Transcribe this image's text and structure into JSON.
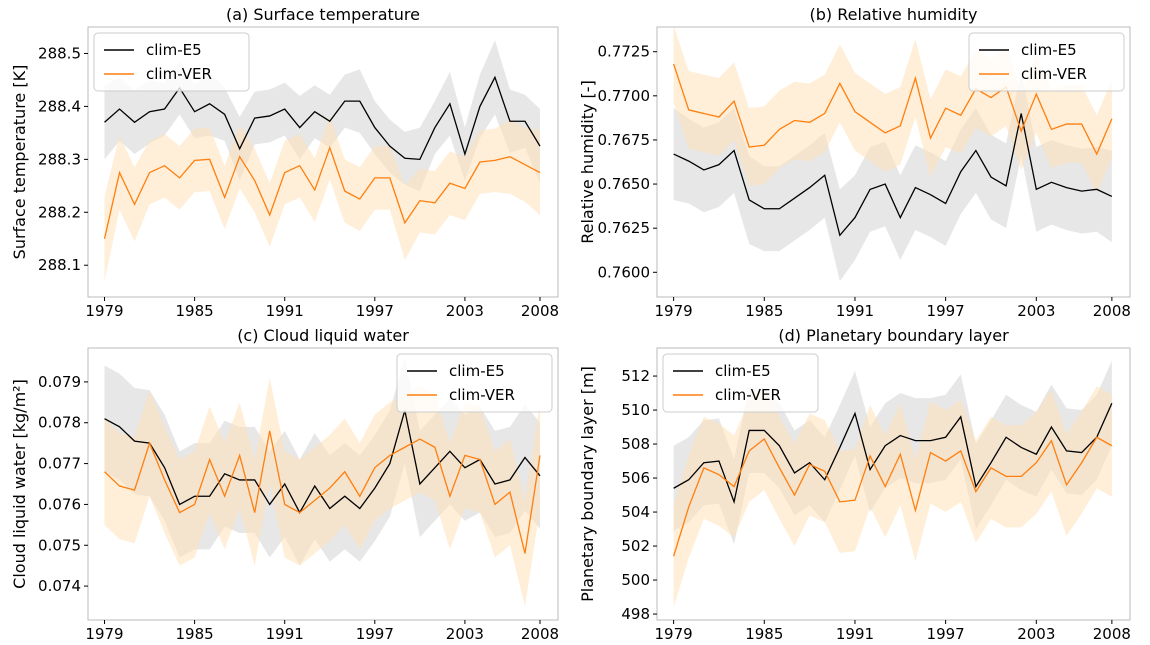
{
  "chart_data": [
    {
      "type": "line",
      "title": "(a) Surface temperature",
      "ylabel": "Surface temperature [K]",
      "x": [
        1979,
        1980,
        1981,
        1982,
        1983,
        1984,
        1985,
        1986,
        1987,
        1988,
        1989,
        1990,
        1991,
        1992,
        1993,
        1994,
        1995,
        1996,
        1997,
        1998,
        1999,
        2000,
        2001,
        2002,
        2003,
        2004,
        2005,
        2006,
        2007,
        2008
      ],
      "xlim": [
        1977.9,
        2009.2
      ],
      "xticks": [
        1979,
        1985,
        1991,
        1997,
        2003,
        2008
      ],
      "ylim": [
        288.04,
        288.55
      ],
      "yticks": [
        288.1,
        288.2,
        288.3,
        288.4,
        288.5
      ],
      "legend": "upper left",
      "series": [
        {
          "name": "clim-E5",
          "color": "#000000",
          "band_color": "#d3d3d3",
          "values": [
            288.37,
            288.395,
            288.37,
            288.39,
            288.395,
            288.435,
            288.39,
            288.405,
            288.385,
            288.32,
            288.378,
            288.382,
            288.395,
            288.36,
            288.39,
            288.372,
            288.41,
            288.41,
            288.36,
            288.325,
            288.302,
            288.3,
            288.36,
            288.405,
            288.31,
            288.4,
            288.455,
            288.372,
            288.372,
            288.325
          ],
          "errors": [
            0.07,
            0.06,
            0.06,
            0.06,
            0.05,
            0.05,
            0.05,
            0.06,
            0.05,
            0.06,
            0.05,
            0.05,
            0.05,
            0.06,
            0.05,
            0.05,
            0.05,
            0.06,
            0.05,
            0.05,
            0.05,
            0.06,
            0.05,
            0.06,
            0.05,
            0.06,
            0.07,
            0.06,
            0.05,
            0.07
          ]
        },
        {
          "name": "clim-VER",
          "color": "#ff7f0e",
          "band_color": "#ffe0b8",
          "values": [
            288.15,
            288.275,
            288.215,
            288.275,
            288.288,
            288.265,
            288.298,
            288.3,
            288.228,
            288.305,
            288.26,
            288.195,
            288.275,
            288.288,
            288.242,
            288.322,
            288.24,
            288.225,
            288.265,
            288.265,
            288.18,
            288.222,
            288.218,
            288.255,
            288.245,
            288.295,
            288.298,
            288.305,
            288.29,
            288.275
          ],
          "errors": [
            0.08,
            0.07,
            0.07,
            0.06,
            0.06,
            0.06,
            0.06,
            0.06,
            0.06,
            0.06,
            0.06,
            0.06,
            0.06,
            0.06,
            0.06,
            0.06,
            0.06,
            0.06,
            0.06,
            0.06,
            0.07,
            0.06,
            0.06,
            0.06,
            0.06,
            0.06,
            0.06,
            0.07,
            0.07,
            0.08
          ]
        }
      ]
    },
    {
      "type": "line",
      "title": "(b) Relative humidity",
      "ylabel": "Relative humidity [-]",
      "x": [
        1979,
        1980,
        1981,
        1982,
        1983,
        1984,
        1985,
        1986,
        1987,
        1988,
        1989,
        1990,
        1991,
        1992,
        1993,
        1994,
        1995,
        1996,
        1997,
        1998,
        1999,
        2000,
        2001,
        2002,
        2003,
        2004,
        2005,
        2006,
        2007,
        2008
      ],
      "xlim": [
        1977.9,
        2009.2
      ],
      "xticks": [
        1979,
        1985,
        1991,
        1997,
        2003,
        2008
      ],
      "ylim": [
        0.7586,
        0.7739
      ],
      "yticks": [
        {
          "value": 0.76,
          "label": "0.7600"
        },
        {
          "value": 0.7625,
          "label": "0.7625"
        },
        {
          "value": 0.765,
          "label": "0.7650"
        },
        {
          "value": 0.7675,
          "label": "0.7675"
        },
        {
          "value": 0.77,
          "label": "0.7700"
        },
        {
          "value": 0.7725,
          "label": "0.7725"
        }
      ],
      "legend": "upper right",
      "series": [
        {
          "name": "clim-E5",
          "color": "#000000",
          "band_color": "#d3d3d3",
          "values": [
            0.7667,
            0.7663,
            0.7658,
            0.7661,
            0.7669,
            0.7641,
            0.7636,
            0.7636,
            0.7642,
            0.7648,
            0.7655,
            0.7621,
            0.7631,
            0.7647,
            0.765,
            0.7631,
            0.7648,
            0.7644,
            0.7639,
            0.7657,
            0.7669,
            0.7654,
            0.7649,
            0.769,
            0.7647,
            0.7651,
            0.7648,
            0.7646,
            0.7647,
            0.7643
          ],
          "errors": [
            0.0026,
            0.0024,
            0.0024,
            0.0024,
            0.0024,
            0.0025,
            0.0024,
            0.0024,
            0.0024,
            0.0024,
            0.0024,
            0.0026,
            0.0024,
            0.0024,
            0.0024,
            0.0024,
            0.0024,
            0.0024,
            0.0024,
            0.0024,
            0.0024,
            0.0024,
            0.0024,
            0.0024,
            0.0024,
            0.0024,
            0.0024,
            0.0024,
            0.0024,
            0.0026
          ]
        },
        {
          "name": "clim-VER",
          "color": "#ff7f0e",
          "band_color": "#ffe0b8",
          "values": [
            0.7718,
            0.7692,
            0.769,
            0.7688,
            0.7697,
            0.7671,
            0.7672,
            0.7681,
            0.7686,
            0.7685,
            0.769,
            0.7707,
            0.7691,
            0.7685,
            0.7679,
            0.7683,
            0.771,
            0.7676,
            0.7693,
            0.7689,
            0.7704,
            0.7699,
            0.7705,
            0.768,
            0.7701,
            0.7681,
            0.7684,
            0.7684,
            0.7667,
            0.7687
          ],
          "errors": [
            0.0022,
            0.0022,
            0.0022,
            0.0022,
            0.0022,
            0.0022,
            0.0022,
            0.0022,
            0.0022,
            0.0022,
            0.0022,
            0.0022,
            0.0022,
            0.0022,
            0.0022,
            0.0022,
            0.0022,
            0.0022,
            0.0022,
            0.0022,
            0.0022,
            0.0022,
            0.0022,
            0.0022,
            0.0022,
            0.0022,
            0.0022,
            0.0022,
            0.0022,
            0.0022
          ]
        }
      ]
    },
    {
      "type": "line",
      "title": "(c) Cloud liquid water",
      "ylabel": "Cloud liquid water [kg/m²]",
      "x": [
        1979,
        1980,
        1981,
        1982,
        1983,
        1984,
        1985,
        1986,
        1987,
        1988,
        1989,
        1990,
        1991,
        1992,
        1993,
        1994,
        1995,
        1996,
        1997,
        1998,
        1999,
        2000,
        2001,
        2002,
        2003,
        2004,
        2005,
        2006,
        2007,
        2008
      ],
      "xlim": [
        1977.9,
        2009.2
      ],
      "xticks": [
        1979,
        1985,
        1991,
        1997,
        2003,
        2008
      ],
      "ylim": [
        0.07317,
        0.07983
      ],
      "yticks": [
        0.074,
        0.075,
        0.076,
        0.077,
        0.078,
        0.079
      ],
      "legend": "upper right",
      "series": [
        {
          "name": "clim-E5",
          "color": "#000000",
          "band_color": "#d3d3d3",
          "values": [
            0.0781,
            0.0779,
            0.07755,
            0.0775,
            0.0769,
            0.076,
            0.0762,
            0.0762,
            0.07675,
            0.0766,
            0.0766,
            0.076,
            0.0765,
            0.0758,
            0.07645,
            0.0759,
            0.0762,
            0.0759,
            0.0764,
            0.077,
            0.0783,
            0.0765,
            0.0769,
            0.0773,
            0.0769,
            0.0771,
            0.0765,
            0.0766,
            0.07715,
            0.0767
          ],
          "errors": [
            0.0013,
            0.0013,
            0.0013,
            0.0013,
            0.0013,
            0.0013,
            0.0013,
            0.0013,
            0.0013,
            0.0013,
            0.0013,
            0.0013,
            0.0013,
            0.0013,
            0.0013,
            0.0013,
            0.0013,
            0.0013,
            0.0013,
            0.0013,
            0.0013,
            0.0013,
            0.0013,
            0.0013,
            0.0013,
            0.0013,
            0.0013,
            0.0013,
            0.0013,
            0.0013
          ]
        },
        {
          "name": "clim-VER",
          "color": "#ff7f0e",
          "band_color": "#ffe0b8",
          "values": [
            0.0768,
            0.07645,
            0.07635,
            0.0775,
            0.0766,
            0.0758,
            0.076,
            0.0771,
            0.0762,
            0.0772,
            0.0758,
            0.0778,
            0.076,
            0.0758,
            0.0761,
            0.0764,
            0.0768,
            0.0762,
            0.0769,
            0.0772,
            0.0774,
            0.0776,
            0.0774,
            0.0762,
            0.0772,
            0.0771,
            0.076,
            0.0763,
            0.0748,
            0.0772
          ],
          "errors": [
            0.0013,
            0.0013,
            0.0013,
            0.0013,
            0.0013,
            0.0013,
            0.0013,
            0.0013,
            0.0013,
            0.0013,
            0.0013,
            0.0013,
            0.0013,
            0.0013,
            0.0013,
            0.0013,
            0.0013,
            0.0013,
            0.0013,
            0.0013,
            0.0013,
            0.0013,
            0.0013,
            0.0013,
            0.0013,
            0.0013,
            0.0013,
            0.0013,
            0.0013,
            0.0013
          ]
        }
      ]
    },
    {
      "type": "line",
      "title": "(d) Planetary boundary layer",
      "ylabel": "Planetary boundary layer [m]",
      "x": [
        1979,
        1980,
        1981,
        1982,
        1983,
        1984,
        1985,
        1986,
        1987,
        1988,
        1989,
        1990,
        1991,
        1992,
        1993,
        1994,
        1995,
        1996,
        1997,
        1998,
        1999,
        2000,
        2001,
        2002,
        2003,
        2004,
        2005,
        2006,
        2007,
        2008
      ],
      "xlim": [
        1977.9,
        2009.2
      ],
      "xticks": [
        1979,
        1985,
        1991,
        1997,
        2003,
        2008
      ],
      "ylim": [
        497.65,
        513.65
      ],
      "yticks": [
        498,
        500,
        502,
        504,
        506,
        508,
        510,
        512
      ],
      "legend": "upper left",
      "series": [
        {
          "name": "clim-E5",
          "color": "#000000",
          "band_color": "#d3d3d3",
          "values": [
            505.4,
            505.9,
            506.9,
            507.0,
            504.6,
            508.8,
            508.8,
            507.9,
            506.3,
            506.9,
            505.9,
            507.8,
            509.8,
            506.5,
            507.9,
            508.5,
            508.2,
            508.2,
            508.4,
            509.6,
            505.5,
            506.9,
            508.4,
            507.8,
            507.4,
            509.0,
            507.6,
            507.5,
            508.4,
            510.4
          ],
          "errors": [
            2.5,
            2.5,
            2.5,
            2.5,
            2.5,
            2.5,
            2.5,
            2.5,
            2.5,
            2.5,
            2.5,
            2.5,
            2.5,
            2.5,
            2.5,
            2.5,
            2.5,
            2.5,
            2.5,
            2.5,
            2.5,
            2.5,
            2.5,
            2.5,
            2.5,
            2.5,
            2.5,
            2.5,
            2.5,
            2.5
          ]
        },
        {
          "name": "clim-VER",
          "color": "#ff7f0e",
          "band_color": "#ffe0b8",
          "values": [
            501.4,
            504.3,
            506.6,
            506.2,
            505.5,
            507.6,
            508.3,
            506.6,
            505.0,
            506.8,
            506.4,
            504.6,
            504.7,
            507.3,
            505.5,
            507.4,
            504.1,
            507.5,
            507.0,
            507.6,
            505.2,
            506.6,
            506.1,
            506.1,
            506.9,
            508.2,
            505.6,
            506.9,
            508.4,
            507.9
          ],
          "errors": [
            3.0,
            3.0,
            3.0,
            3.0,
            3.0,
            3.0,
            3.0,
            3.0,
            3.0,
            3.0,
            3.0,
            3.0,
            3.0,
            3.0,
            3.0,
            3.0,
            3.0,
            3.0,
            3.0,
            3.0,
            3.0,
            3.0,
            3.0,
            3.0,
            3.0,
            3.0,
            3.0,
            3.0,
            3.0,
            3.0
          ]
        }
      ]
    }
  ]
}
